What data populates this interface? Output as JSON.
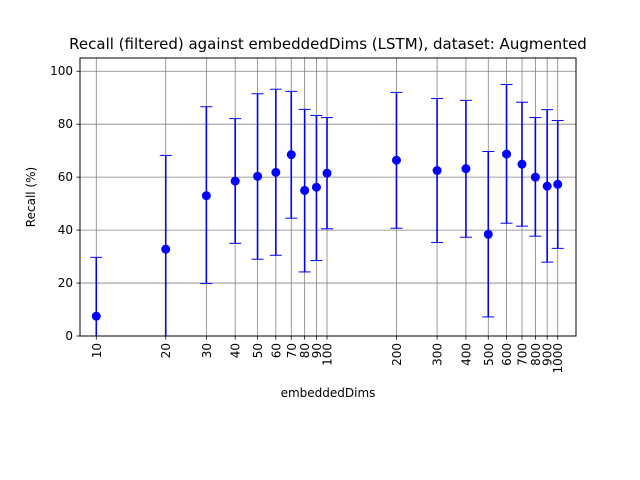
{
  "chart_data": {
    "type": "scatter",
    "title": "Recall (filtered) against embeddedDims (LSTM), dataset: Augmented",
    "xlabel": "embeddedDims",
    "ylabel": "Recall (%)",
    "x_scale": "log",
    "xlim": [
      8.5,
      1200
    ],
    "ylim": [
      0,
      105
    ],
    "y_ticks": [
      0,
      20,
      40,
      60,
      80,
      100
    ],
    "x_ticks": [
      10,
      20,
      30,
      40,
      50,
      60,
      70,
      80,
      90,
      100,
      200,
      300,
      400,
      500,
      600,
      700,
      800,
      900,
      1000
    ],
    "x_tick_labels": [
      "10",
      "20",
      "30",
      "40",
      "50",
      "60",
      "70",
      "80",
      "90",
      "100",
      "200",
      "300",
      "400",
      "500",
      "600",
      "700",
      "800",
      "900",
      "1000"
    ],
    "grid": true,
    "color": "#0000ff",
    "series": [
      {
        "x": [
          10,
          20,
          30,
          40,
          50,
          60,
          70,
          80,
          90,
          100,
          200,
          300,
          400,
          500,
          600,
          700,
          800,
          900,
          1000
        ],
        "y": [
          7.5,
          32.8,
          53.0,
          58.5,
          60.3,
          61.8,
          68.5,
          55.0,
          56.2,
          61.5,
          66.4,
          62.5,
          63.2,
          38.4,
          68.7,
          64.9,
          60.0,
          56.6,
          57.3
        ],
        "err_low": [
          0,
          0,
          19.8,
          35.0,
          29.0,
          30.5,
          44.5,
          24.2,
          28.5,
          40.5,
          40.7,
          35.3,
          37.3,
          7.2,
          42.6,
          41.5,
          37.7,
          27.9,
          33.1
        ],
        "err_high": [
          29.7,
          68.2,
          86.6,
          82.1,
          91.5,
          93.2,
          92.4,
          85.6,
          83.3,
          82.5,
          92.0,
          89.7,
          89.0,
          69.7,
          95.0,
          88.3,
          82.5,
          85.5,
          81.4
        ]
      }
    ]
  }
}
